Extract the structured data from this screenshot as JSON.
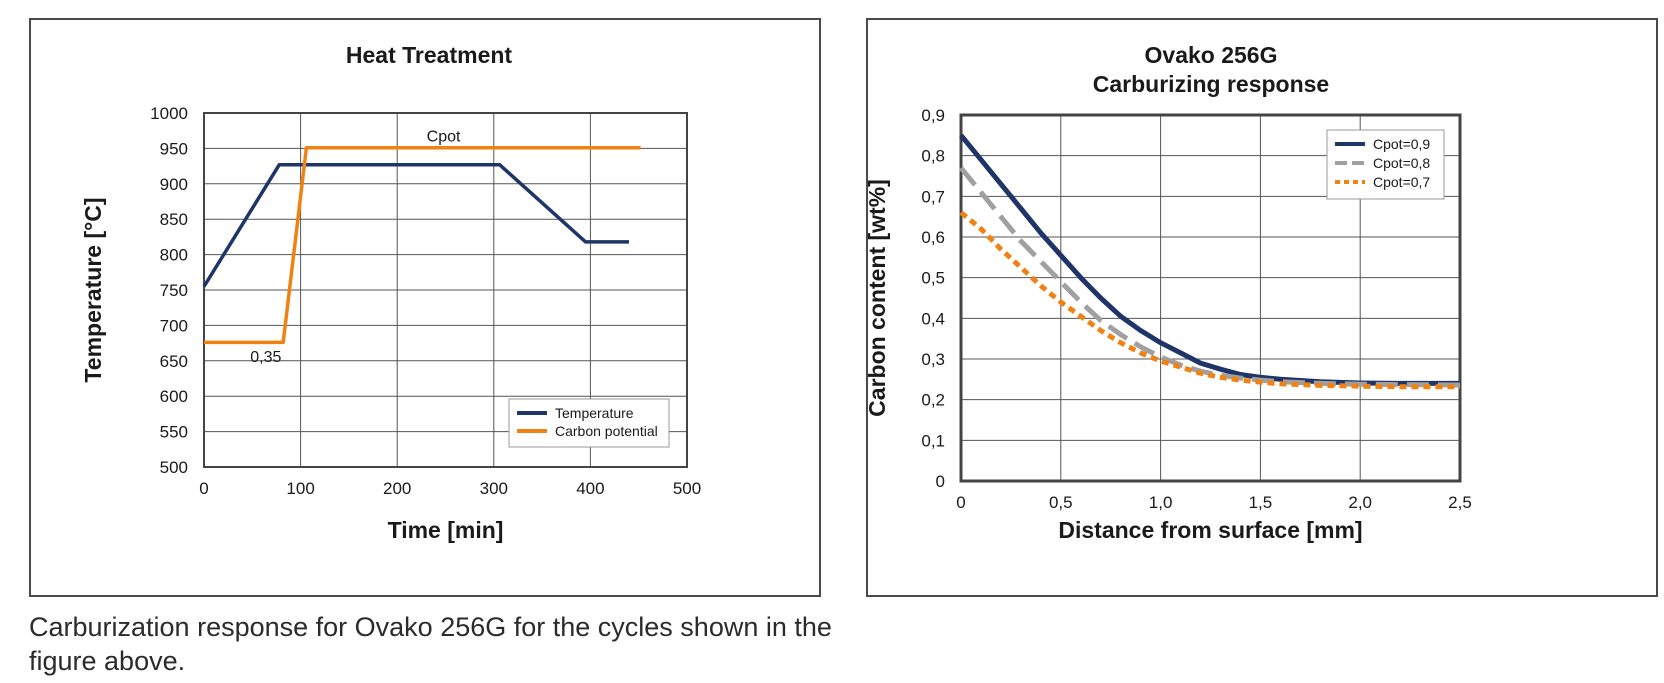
{
  "caption": "Carburization response for Ovako 256G for the cycles shown in the figure above.",
  "chart_data": [
    {
      "type": "line",
      "title": "Heat Treatment",
      "xlabel": "Time [min]",
      "ylabel": "Temperature [°C]",
      "xlim": [
        0,
        500
      ],
      "ylim": [
        500,
        1000
      ],
      "xticks": [
        0,
        100,
        200,
        300,
        400,
        500
      ],
      "yticks": [
        500,
        550,
        600,
        650,
        700,
        750,
        800,
        850,
        900,
        950,
        1000
      ],
      "xtick_labels": [
        "0",
        "100",
        "200",
        "300",
        "400",
        "500"
      ],
      "ytick_labels": [
        "500",
        "550",
        "600",
        "650",
        "700",
        "750",
        "800",
        "850",
        "900",
        "950",
        "1000"
      ],
      "grid": true,
      "legend_position": "bottom-right",
      "series": [
        {
          "name": "Temperature",
          "color": "#1f3568",
          "dash": "solid",
          "x": [
            0,
            78,
            306,
            395,
            440
          ],
          "y": [
            755,
            927,
            927,
            818,
            818
          ]
        },
        {
          "name": "Carbon potential",
          "color": "#f08214",
          "dash": "solid",
          "x": [
            0,
            82,
            106,
            452
          ],
          "y": [
            676,
            676,
            951,
            951
          ]
        }
      ],
      "annotations": [
        {
          "text": "Cpot",
          "x": 248,
          "y": 960
        },
        {
          "text": "0,35",
          "x": 64,
          "y": 648
        }
      ]
    },
    {
      "type": "line",
      "title": "Ovako 256G",
      "subtitle": "Carburizing response",
      "xlabel": "Distance from surface [mm]",
      "ylabel": "Carbon content [wt%]",
      "xlim": [
        0,
        2.5
      ],
      "ylim": [
        0,
        0.9
      ],
      "xticks": [
        0,
        0.5,
        1.0,
        1.5,
        2.0,
        2.5
      ],
      "yticks": [
        0,
        0.1,
        0.2,
        0.3,
        0.4,
        0.5,
        0.6,
        0.7,
        0.8,
        0.9
      ],
      "xtick_labels": [
        "0",
        "0,5",
        "1,0",
        "1,5",
        "2,0",
        "2,5"
      ],
      "ytick_labels": [
        "0",
        "0,1",
        "0,2",
        "0,3",
        "0,4",
        "0,5",
        "0,6",
        "0,7",
        "0,8",
        "0,9"
      ],
      "grid": true,
      "legend_position": "top-right",
      "series": [
        {
          "name": "Cpot=0,9",
          "color": "#1f3568",
          "dash": "solid",
          "x": [
            0,
            0.1,
            0.2,
            0.3,
            0.4,
            0.5,
            0.6,
            0.7,
            0.8,
            0.9,
            1.0,
            1.1,
            1.2,
            1.3,
            1.4,
            1.5,
            1.6,
            1.8,
            2.0,
            2.2,
            2.5
          ],
          "y": [
            0.85,
            0.79,
            0.73,
            0.67,
            0.61,
            0.555,
            0.5,
            0.45,
            0.405,
            0.37,
            0.34,
            0.315,
            0.29,
            0.275,
            0.262,
            0.255,
            0.25,
            0.244,
            0.241,
            0.24,
            0.24
          ]
        },
        {
          "name": "Cpot=0,8",
          "color": "#a0a0a0",
          "dash": "long-dash",
          "x": [
            0,
            0.1,
            0.2,
            0.3,
            0.4,
            0.5,
            0.6,
            0.7,
            0.8,
            0.9,
            1.0,
            1.1,
            1.2,
            1.3,
            1.4,
            1.5,
            1.6,
            1.8,
            2.0,
            2.2,
            2.5
          ],
          "y": [
            0.77,
            0.71,
            0.65,
            0.59,
            0.54,
            0.49,
            0.44,
            0.395,
            0.36,
            0.33,
            0.305,
            0.285,
            0.27,
            0.26,
            0.253,
            0.248,
            0.244,
            0.24,
            0.238,
            0.237,
            0.236
          ]
        },
        {
          "name": "Cpot=0,7",
          "color": "#f08214",
          "dash": "dotted",
          "x": [
            0,
            0.1,
            0.2,
            0.3,
            0.4,
            0.5,
            0.6,
            0.7,
            0.8,
            0.9,
            1.0,
            1.1,
            1.2,
            1.3,
            1.4,
            1.5,
            1.6,
            1.8,
            2.0,
            2.2,
            2.5
          ],
          "y": [
            0.66,
            0.62,
            0.57,
            0.525,
            0.48,
            0.44,
            0.405,
            0.37,
            0.34,
            0.315,
            0.295,
            0.28,
            0.265,
            0.255,
            0.248,
            0.243,
            0.239,
            0.235,
            0.233,
            0.232,
            0.232
          ]
        }
      ]
    }
  ]
}
